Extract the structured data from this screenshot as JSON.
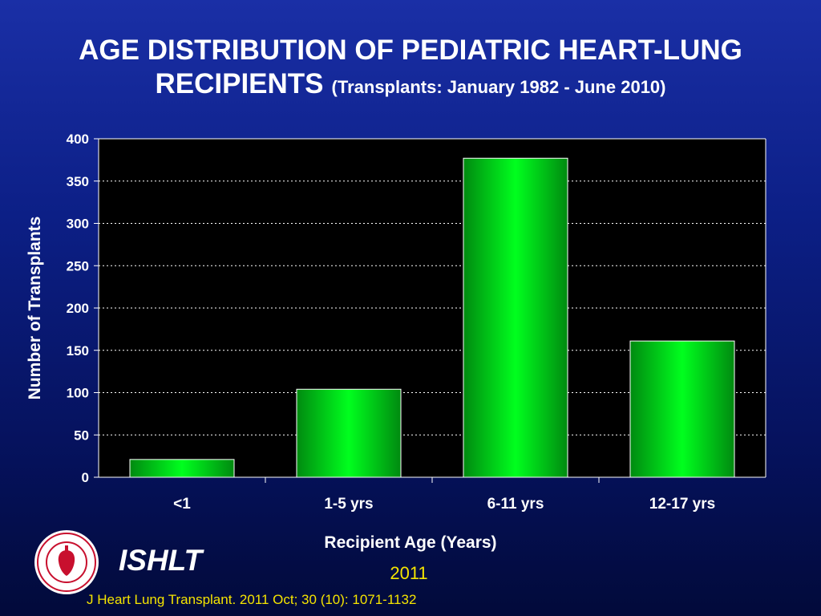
{
  "header": {
    "title_main": "AGE DISTRIBUTION OF PEDIATRIC HEART-LUNG",
    "title_second": "RECIPIENTS",
    "title_sub": "(Transplants: January 1982 - June 2010)"
  },
  "chart_data": {
    "type": "bar",
    "categories": [
      "<1",
      "1-5 yrs",
      "6-11 yrs",
      "12-17 yrs"
    ],
    "values": [
      21,
      104,
      377,
      161
    ],
    "xlabel": "Recipient Age (Years)",
    "ylabel": "Number of Transplants",
    "ylim": [
      0,
      400
    ],
    "yticks": [
      0,
      50,
      100,
      150,
      200,
      250,
      300,
      350,
      400
    ],
    "grid": true,
    "colors": {
      "bar": "#00ff1e",
      "bar_edge": "#008c10",
      "plot_bg": "#000000"
    }
  },
  "footer": {
    "org": "ISHLT",
    "year": "2011",
    "citation": "J Heart Lung Transplant. 2011 Oct; 30 (10): 1071-1132",
    "logo_text": "INTERNATIONAL SOCIETY FOR HEART & LUNG TRANSPLANTATION"
  }
}
